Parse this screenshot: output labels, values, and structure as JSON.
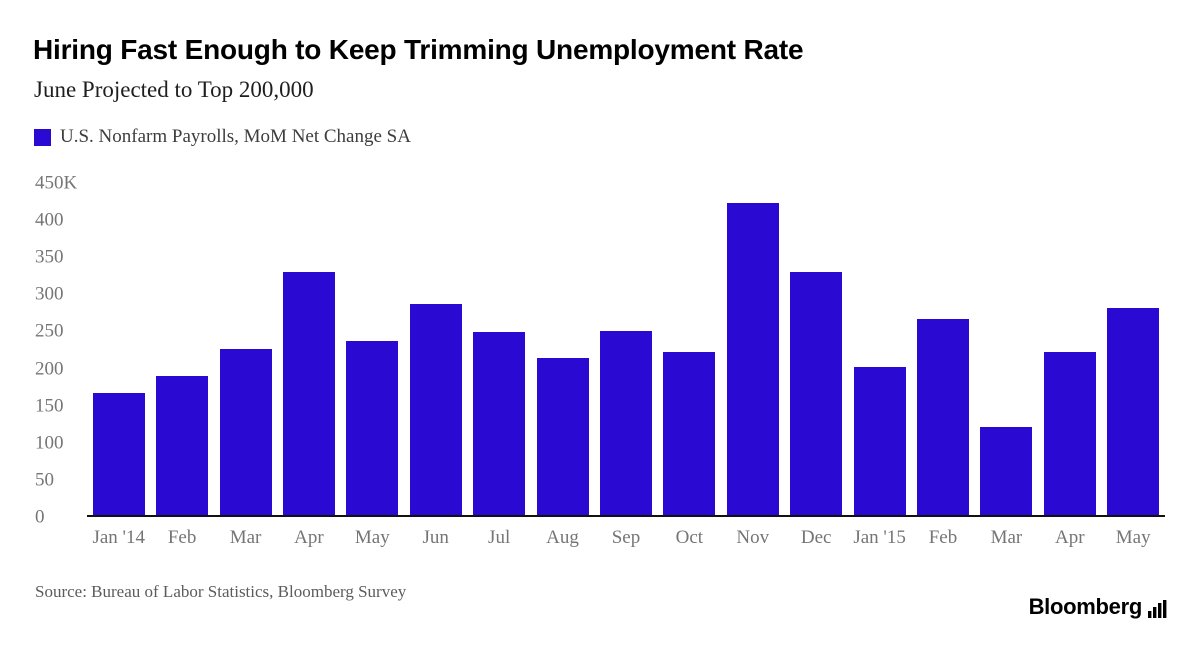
{
  "header": {
    "title": "Hiring Fast Enough to Keep Trimming Unemployment Rate",
    "subtitle": "June Projected to Top 200,000",
    "legend": {
      "label": "U.S. Nonfarm Payrolls, MoM Net Change SA",
      "swatch_color": "#2a0ad2"
    }
  },
  "chart_data": {
    "type": "bar",
    "title": "Hiring Fast Enough to Keep Trimming Unemployment Rate",
    "subtitle": "June Projected to Top 200,000",
    "series_name": "U.S. Nonfarm Payrolls, MoM Net Change SA",
    "categories": [
      "Jan '14",
      "Feb",
      "Mar",
      "Apr",
      "May",
      "Jun",
      "Jul",
      "Aug",
      "Sep",
      "Oct",
      "Nov",
      "Dec",
      "Jan '15",
      "Feb",
      "Mar",
      "Apr",
      "May"
    ],
    "values": [
      165,
      188,
      225,
      330,
      236,
      286,
      248,
      213,
      250,
      221,
      423,
      329,
      201,
      266,
      119,
      221,
      280
    ],
    "unit": "K",
    "xlabel": "",
    "ylabel": "",
    "ylim": [
      0,
      450
    ],
    "yticks": [
      0,
      50,
      100,
      150,
      200,
      250,
      300,
      350,
      400,
      450
    ],
    "ytick_labels": [
      "0",
      "50",
      "100",
      "150",
      "200",
      "250",
      "300",
      "350",
      "400",
      "450K"
    ],
    "grid": false,
    "legend_position": "top-left",
    "bar_color": "#2a0ad2",
    "axis_line_color": "#111111",
    "tick_label_color": "#757575"
  },
  "footer": {
    "source": "Source: Bureau of Labor Statistics, Bloomberg Survey",
    "brand": "Bloomberg"
  }
}
